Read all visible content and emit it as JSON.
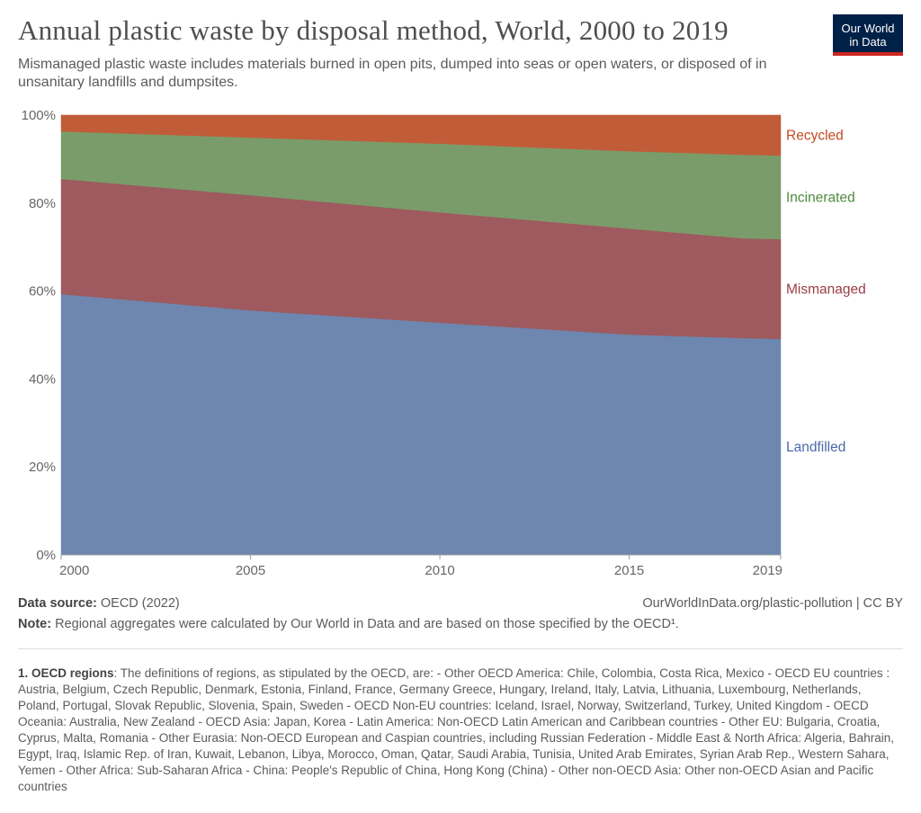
{
  "header": {
    "title": "Annual plastic waste by disposal method, World, 2000 to 2019",
    "subtitle": "Mismanaged plastic waste includes materials burned in open pits, dumped into seas or open waters, or disposed of in unsanitary landfills and dumpsites.",
    "logo": "Our World in Data"
  },
  "chart_data": {
    "type": "area",
    "stacked": true,
    "normalized": true,
    "x": [
      2000,
      2005,
      2010,
      2015,
      2018,
      2019
    ],
    "xticks": [
      "2000",
      "2005",
      "2010",
      "2015",
      "2019"
    ],
    "yticks": [
      "0%",
      "20%",
      "40%",
      "60%",
      "80%",
      "100%"
    ],
    "ylim": [
      0,
      100
    ],
    "grid": "horizontal dashed",
    "legend": "right, inline labels",
    "series": [
      {
        "name": "Landfilled",
        "color": "#6d87b0",
        "values": [
          59.3,
          55.6,
          52.8,
          50.1,
          49.3,
          49.1
        ]
      },
      {
        "name": "Mismanaged",
        "color": "#9e5a5f",
        "values": [
          26.2,
          26.2,
          25.1,
          24.1,
          22.7,
          22.7
        ]
      },
      {
        "name": "Incinerated",
        "color": "#7a9c6a",
        "values": [
          10.8,
          13.1,
          15.6,
          17.6,
          19.0,
          19.0
        ]
      },
      {
        "name": "Recycled",
        "color": "#c05d38",
        "values": [
          3.7,
          5.1,
          6.5,
          8.2,
          9.0,
          9.2
        ]
      }
    ],
    "label_colors": {
      "Landfilled": "#4a6aa8",
      "Mismanaged": "#9a3c44",
      "Incinerated": "#4f8a3f",
      "Recycled": "#c04a1f"
    }
  },
  "footer": {
    "source_label": "Data source:",
    "source_value": "OECD (2022)",
    "url": "OurWorldInData.org/plastic-pollution | CC BY",
    "note_label": "Note:",
    "note_value": "Regional aggregates were calculated by Our World in Data and are based on those specified by the OECD¹.",
    "footnote_label": "1. OECD regions",
    "footnote_value": ": The definitions of regions, as stipulated by the OECD, are: - Other OECD America: Chile, Colombia, Costa Rica, Mexico - OECD EU countries : Austria, Belgium, Czech Republic, Denmark, Estonia, Finland, France, Germany Greece, Hungary, Ireland, Italy, Latvia, Lithuania, Luxembourg, Netherlands, Poland, Portugal, Slovak Republic, Slovenia, Spain, Sweden - OECD Non-EU countries: Iceland, Israel, Norway, Switzerland, Turkey, United Kingdom - OECD Oceania: Australia, New Zealand - OECD Asia: Japan, Korea - Latin America: Non-OECD Latin American and Caribbean countries - Other EU: Bulgaria, Croatia, Cyprus, Malta, Romania - Other Eurasia: Non-OECD European and Caspian countries, including Russian Federation - Middle East & North Africa: Algeria, Bahrain, Egypt, Iraq, Islamic Rep. of Iran, Kuwait, Lebanon, Libya, Morocco, Oman, Qatar, Saudi Arabia, Tunisia, United Arab Emirates, Syrian Arab Rep., Western Sahara, Yemen - Other Africa: Sub-Saharan Africa - China: People's Republic of China, Hong Kong (China) - Other non-OECD Asia: Other non-OECD Asian and Pacific countries"
  }
}
